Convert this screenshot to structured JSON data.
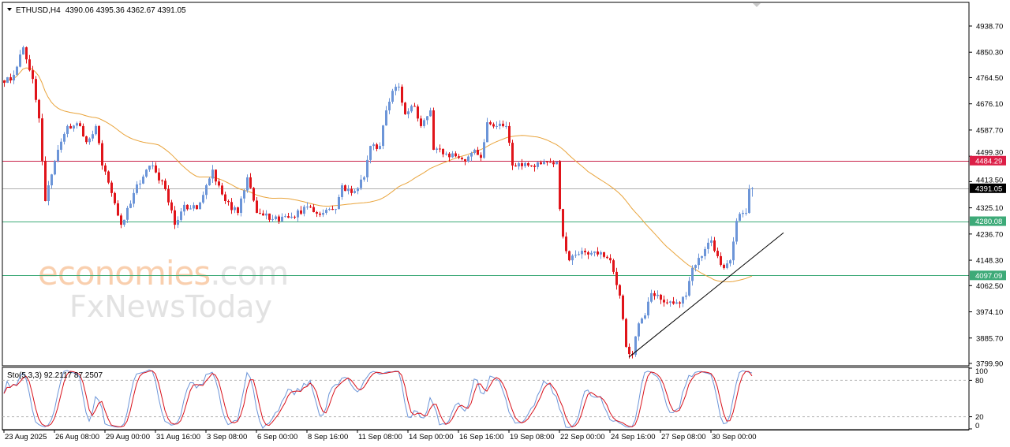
{
  "header": {
    "symbol": "ETHUSD,H4",
    "ohlc": "4390.06 4395.36 4362.67 4391.05"
  },
  "colors": {
    "bull": "#6c95d8",
    "bear": "#e0141a",
    "ma": "#e9a43c",
    "resistance": "#c8234a",
    "support": "#3daa78",
    "current": "#000000",
    "stoch_main": "#6c95d8",
    "stoch_signal": "#d8101a"
  },
  "watermark": {
    "brand1": "economies",
    "brand1_suffix": ".com",
    "brand2": "FxNewsToday"
  },
  "chart_data": {
    "type": "candlestick",
    "symbol": "ETHUSD",
    "timeframe": "H4",
    "ylim": [
      3799.9,
      4938.7
    ],
    "y_ticks": [
      "4938.70",
      "4850.30",
      "4764.50",
      "4676.10",
      "4587.70",
      "4499.30",
      "4413.50",
      "4325.10",
      "4236.70",
      "4148.30",
      "4062.50",
      "3974.10",
      "3885.70",
      "3799.90"
    ],
    "x_ticks": [
      "23 Aug 2025",
      "26 Aug 08:00",
      "29 Aug 00:00",
      "31 Aug 16:00",
      "3 Sep 08:00",
      "6 Sep 00:00",
      "8 Sep 16:00",
      "11 Sep 08:00",
      "14 Sep 00:00",
      "16 Sep 16:00",
      "19 Sep 08:00",
      "22 Sep 00:00",
      "24 Sep 16:00",
      "27 Sep 08:00",
      "30 Sep 00:00"
    ],
    "last_bar": {
      "open": 4390.06,
      "high": 4395.36,
      "low": 4362.67,
      "close": 4391.05
    },
    "close_path": [
      [
        "23 Aug 16:00",
        4747
      ],
      [
        "24 Aug 04:00",
        4774
      ],
      [
        "24 Aug 16:00",
        4867
      ],
      [
        "25 Aug 04:00",
        4760
      ],
      [
        "25 Aug 12:00",
        4627
      ],
      [
        "25 Aug 20:00",
        4348
      ],
      [
        "26 Aug 00:00",
        4401
      ],
      [
        "26 Aug 12:00",
        4521
      ],
      [
        "27 Aug 00:00",
        4601
      ],
      [
        "27 Aug 16:00",
        4601
      ],
      [
        "28 Aug 00:00",
        4547
      ],
      [
        "28 Aug 12:00",
        4601
      ],
      [
        "28 Aug 20:00",
        4468
      ],
      [
        "29 Aug 08:00",
        4375
      ],
      [
        "29 Aug 20:00",
        4268
      ],
      [
        "30 Aug 12:00",
        4375
      ],
      [
        "31 Aug 04:00",
        4454
      ],
      [
        "31 Aug 12:00",
        4468
      ],
      [
        "1 Sep 04:00",
        4388
      ],
      [
        "1 Sep 16:00",
        4268
      ],
      [
        "2 Sep 04:00",
        4335
      ],
      [
        "2 Sep 20:00",
        4321
      ],
      [
        "3 Sep 16:00",
        4454
      ],
      [
        "3 Sep 20:00",
        4414
      ],
      [
        "4 Sep 08:00",
        4348
      ],
      [
        "5 Sep 00:00",
        4308
      ],
      [
        "5 Sep 12:00",
        4428
      ],
      [
        "6 Sep 00:00",
        4308
      ],
      [
        "6 Sep 20:00",
        4287
      ],
      [
        "7 Sep 20:00",
        4295
      ],
      [
        "8 Sep 16:00",
        4329
      ],
      [
        "9 Sep 12:00",
        4308
      ],
      [
        "10 Sep 04:00",
        4321
      ],
      [
        "10 Sep 12:00",
        4401
      ],
      [
        "11 Sep 00:00",
        4375
      ],
      [
        "11 Sep 16:00",
        4428
      ],
      [
        "12 Sep 00:00",
        4534
      ],
      [
        "12 Sep 12:00",
        4534
      ],
      [
        "12 Sep 20:00",
        4654
      ],
      [
        "13 Sep 04:00",
        4720
      ],
      [
        "13 Sep 12:00",
        4734
      ],
      [
        "13 Sep 20:00",
        4641
      ],
      [
        "14 Sep 08:00",
        4667
      ],
      [
        "14 Sep 16:00",
        4601
      ],
      [
        "15 Sep 04:00",
        4654
      ],
      [
        "15 Sep 08:00",
        4521
      ],
      [
        "16 Sep 00:00",
        4508
      ],
      [
        "16 Sep 16:00",
        4494
      ],
      [
        "17 Sep 00:00",
        4481
      ],
      [
        "17 Sep 12:00",
        4521
      ],
      [
        "17 Sep 20:00",
        4494
      ],
      [
        "18 Sep 04:00",
        4614
      ],
      [
        "18 Sep 16:00",
        4601
      ],
      [
        "19 Sep 04:00",
        4601
      ],
      [
        "19 Sep 12:00",
        4468
      ],
      [
        "20 Sep 08:00",
        4468
      ],
      [
        "21 Sep 04:00",
        4481
      ],
      [
        "21 Sep 20:00",
        4481
      ],
      [
        "22 Sep 00:00",
        4321
      ],
      [
        "22 Sep 04:00",
        4228
      ],
      [
        "22 Sep 12:00",
        4148
      ],
      [
        "23 Sep 08:00",
        4175
      ],
      [
        "24 Sep 04:00",
        4175
      ],
      [
        "24 Sep 16:00",
        4148
      ],
      [
        "25 Sep 04:00",
        4029
      ],
      [
        "25 Sep 12:00",
        3856
      ],
      [
        "25 Sep 20:00",
        3829
      ],
      [
        "26 Sep 04:00",
        3935
      ],
      [
        "26 Sep 12:00",
        3962
      ],
      [
        "26 Sep 20:00",
        4037
      ],
      [
        "27 Sep 08:00",
        4015
      ],
      [
        "28 Sep 08:00",
        4002
      ],
      [
        "28 Sep 16:00",
        4029
      ],
      [
        "29 Sep 00:00",
        4122
      ],
      [
        "29 Sep 12:00",
        4162
      ],
      [
        "30 Sep 00:00",
        4215
      ],
      [
        "30 Sep 08:00",
        4162
      ],
      [
        "30 Sep 16:00",
        4122
      ],
      [
        "1 Oct 00:00",
        4148
      ],
      [
        "1 Oct 08:00",
        4281
      ],
      [
        "1 Oct 16:00",
        4308
      ],
      [
        "1 Oct 20:00",
        4308
      ],
      [
        "2 Oct 00:00",
        4388
      ],
      [
        "2 Oct 04:00",
        4391.05
      ]
    ],
    "levels": [
      {
        "price": "4484.29",
        "kind": "resistance"
      },
      {
        "price": "4391.05",
        "kind": "current"
      },
      {
        "price": "4280.08",
        "kind": "support"
      },
      {
        "price": "4097.09",
        "kind": "support"
      }
    ],
    "trendline": {
      "from": [
        "25 Sep 16:00",
        3821
      ],
      "to": [
        "3 Oct 20:00",
        4241
      ]
    },
    "indicator": {
      "label": "Sto(5,3,3)",
      "main_value": "92.2117",
      "signal_value": "87.2507",
      "ylim": [
        0,
        100
      ],
      "levels": [
        80,
        20
      ],
      "y_ticks": [
        "100",
        "80",
        "20",
        "0"
      ]
    }
  }
}
